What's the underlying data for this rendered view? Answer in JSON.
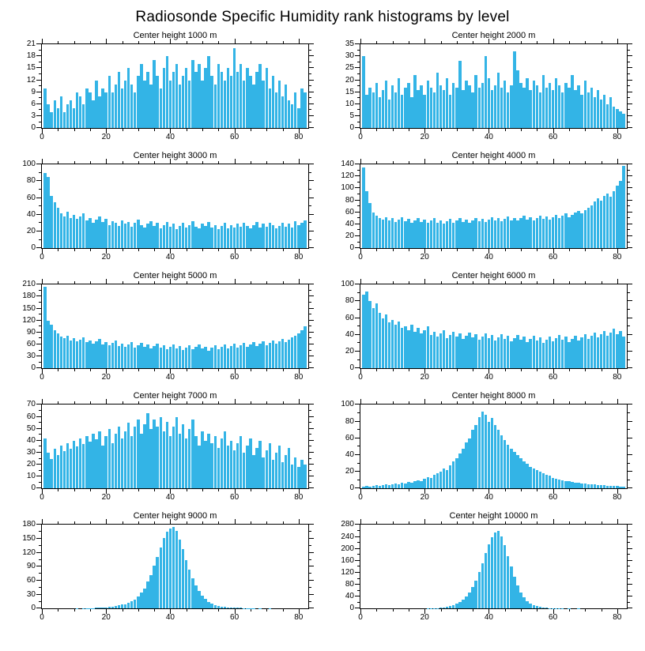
{
  "title": "Radiosonde Specific Humidity rank histograms by level",
  "colors": {
    "bar": "#33b4e6",
    "axis": "#000000",
    "background": "#ffffff"
  },
  "axes": {
    "xticks": [
      0,
      20,
      40,
      60,
      80
    ],
    "xminor_step": 5,
    "xlim": [
      0,
      83
    ]
  },
  "chart_data": [
    {
      "type": "bar",
      "title": "Center height 1000 m",
      "x_start": 1,
      "ylim": [
        0,
        21
      ],
      "yticks": [
        0,
        3,
        6,
        9,
        12,
        15,
        18,
        21
      ],
      "values": [
        10,
        6,
        4,
        7,
        5,
        8,
        4,
        6,
        7,
        5,
        9,
        8,
        6,
        10,
        9,
        7,
        12,
        8,
        10,
        9,
        13,
        9,
        11,
        14,
        10,
        12,
        15,
        11,
        9,
        13,
        16,
        12,
        14,
        11,
        17,
        13,
        10,
        15,
        18,
        12,
        14,
        16,
        11,
        13,
        15,
        12,
        17,
        14,
        16,
        12,
        15,
        18,
        13,
        11,
        16,
        14,
        12,
        15,
        13,
        20,
        14,
        16,
        12,
        15,
        13,
        11,
        14,
        16,
        12,
        15,
        10,
        13,
        9,
        12,
        8,
        11,
        7,
        6,
        9,
        5,
        10,
        9
      ]
    },
    {
      "type": "bar",
      "title": "Center height 2000 m",
      "x_start": 1,
      "ylim": [
        0,
        35
      ],
      "yticks": [
        0,
        5,
        10,
        15,
        20,
        25,
        30,
        35
      ],
      "values": [
        30,
        14,
        17,
        15,
        19,
        13,
        16,
        20,
        12,
        18,
        15,
        21,
        14,
        17,
        19,
        13,
        22,
        16,
        18,
        14,
        20,
        17,
        15,
        23,
        18,
        16,
        21,
        14,
        19,
        17,
        28,
        16,
        20,
        18,
        15,
        22,
        17,
        19,
        30,
        21,
        16,
        18,
        23,
        17,
        20,
        15,
        18,
        32,
        24,
        19,
        17,
        21,
        16,
        20,
        18,
        15,
        22,
        17,
        19,
        16,
        21,
        18,
        15,
        19,
        17,
        22,
        16,
        18,
        14,
        20,
        15,
        17,
        13,
        16,
        12,
        14,
        10,
        13,
        9,
        8,
        7,
        6
      ]
    },
    {
      "type": "bar",
      "title": "Center height 3000 m",
      "x_start": 1,
      "ylim": [
        0,
        100
      ],
      "yticks": [
        0,
        20,
        40,
        60,
        80,
        100
      ],
      "values": [
        90,
        85,
        62,
        55,
        48,
        42,
        38,
        44,
        36,
        40,
        35,
        38,
        42,
        33,
        36,
        30,
        34,
        38,
        31,
        35,
        28,
        32,
        30,
        27,
        33,
        29,
        31,
        26,
        30,
        34,
        28,
        25,
        29,
        32,
        27,
        30,
        24,
        28,
        31,
        26,
        29,
        23,
        27,
        30,
        25,
        28,
        32,
        26,
        24,
        29,
        27,
        31,
        25,
        28,
        23,
        27,
        30,
        24,
        28,
        25,
        29,
        26,
        30,
        27,
        24,
        28,
        31,
        25,
        29,
        26,
        30,
        28,
        24,
        27,
        30,
        26,
        29,
        25,
        32,
        28,
        30,
        33
      ]
    },
    {
      "type": "bar",
      "title": "Center height 4000 m",
      "x_start": 1,
      "ylim": [
        0,
        140
      ],
      "yticks": [
        0,
        20,
        40,
        60,
        80,
        100,
        120,
        140
      ],
      "values": [
        135,
        95,
        75,
        60,
        55,
        50,
        48,
        52,
        46,
        50,
        44,
        48,
        52,
        45,
        49,
        43,
        47,
        51,
        44,
        48,
        42,
        46,
        50,
        43,
        47,
        41,
        45,
        49,
        42,
        46,
        50,
        44,
        48,
        43,
        47,
        51,
        45,
        49,
        44,
        48,
        52,
        46,
        50,
        45,
        49,
        53,
        47,
        51,
        46,
        50,
        54,
        48,
        52,
        47,
        51,
        55,
        49,
        53,
        48,
        52,
        56,
        50,
        54,
        58,
        52,
        56,
        60,
        62,
        58,
        64,
        68,
        72,
        78,
        84,
        80,
        88,
        92,
        86,
        96,
        104,
        112,
        138
      ]
    },
    {
      "type": "bar",
      "title": "Center height 5000 m",
      "x_start": 1,
      "ylim": [
        0,
        210
      ],
      "yticks": [
        0,
        30,
        60,
        90,
        120,
        150,
        180,
        210
      ],
      "values": [
        205,
        120,
        110,
        95,
        88,
        80,
        75,
        82,
        70,
        76,
        68,
        72,
        78,
        65,
        70,
        62,
        68,
        74,
        60,
        66,
        58,
        64,
        70,
        56,
        62,
        54,
        60,
        66,
        52,
        58,
        64,
        55,
        60,
        50,
        56,
        62,
        53,
        58,
        48,
        54,
        60,
        50,
        56,
        46,
        52,
        58,
        49,
        54,
        60,
        50,
        55,
        45,
        52,
        58,
        48,
        54,
        60,
        50,
        56,
        62,
        52,
        58,
        64,
        54,
        60,
        66,
        56,
        62,
        68,
        58,
        64,
        70,
        62,
        68,
        74,
        66,
        72,
        78,
        82,
        88,
        95,
        105
      ]
    },
    {
      "type": "bar",
      "title": "Center height 6000 m",
      "x_start": 1,
      "ylim": [
        0,
        100
      ],
      "yticks": [
        0,
        20,
        40,
        60,
        80,
        100
      ],
      "values": [
        88,
        92,
        80,
        72,
        78,
        66,
        60,
        64,
        55,
        58,
        52,
        56,
        48,
        50,
        46,
        52,
        44,
        48,
        42,
        46,
        50,
        40,
        44,
        38,
        42,
        46,
        36,
        40,
        44,
        38,
        42,
        35,
        39,
        43,
        37,
        41,
        34,
        38,
        42,
        36,
        40,
        33,
        37,
        41,
        35,
        39,
        32,
        36,
        40,
        34,
        38,
        31,
        35,
        39,
        33,
        37,
        30,
        34,
        38,
        32,
        36,
        40,
        34,
        38,
        31,
        35,
        39,
        33,
        37,
        41,
        35,
        39,
        43,
        37,
        41,
        45,
        39,
        43,
        47,
        41,
        45,
        38
      ]
    },
    {
      "type": "bar",
      "title": "Center height 7000 m",
      "x_start": 1,
      "ylim": [
        0,
        70
      ],
      "yticks": [
        0,
        10,
        20,
        30,
        40,
        50,
        60,
        70
      ],
      "values": [
        42,
        30,
        25,
        33,
        28,
        36,
        31,
        38,
        33,
        40,
        35,
        42,
        37,
        44,
        39,
        46,
        41,
        48,
        36,
        44,
        50,
        38,
        46,
        52,
        42,
        48,
        55,
        44,
        52,
        58,
        46,
        54,
        63,
        50,
        58,
        52,
        60,
        48,
        56,
        44,
        52,
        60,
        46,
        54,
        42,
        50,
        58,
        44,
        36,
        48,
        40,
        46,
        38,
        44,
        34,
        42,
        48,
        36,
        40,
        32,
        38,
        44,
        30,
        36,
        42,
        28,
        34,
        40,
        26,
        32,
        38,
        24,
        30,
        36,
        22,
        28,
        34,
        20,
        26,
        18,
        24,
        20
      ]
    },
    {
      "type": "bar",
      "title": "Center height 8000 m",
      "x_start": 1,
      "ylim": [
        0,
        100
      ],
      "yticks": [
        0,
        20,
        40,
        60,
        80,
        100
      ],
      "values": [
        2,
        3,
        2,
        3,
        4,
        3,
        4,
        5,
        4,
        5,
        6,
        5,
        7,
        6,
        8,
        7,
        9,
        10,
        9,
        12,
        14,
        13,
        16,
        18,
        20,
        24,
        22,
        28,
        32,
        36,
        42,
        48,
        55,
        60,
        70,
        76,
        85,
        92,
        88,
        80,
        84,
        76,
        70,
        64,
        58,
        52,
        48,
        44,
        40,
        36,
        32,
        30,
        26,
        24,
        22,
        20,
        18,
        16,
        15,
        13,
        12,
        11,
        10,
        9,
        9,
        8,
        7,
        7,
        6,
        6,
        5,
        5,
        5,
        4,
        4,
        4,
        3,
        3,
        3,
        3,
        2,
        2
      ]
    },
    {
      "type": "bar",
      "title": "Center height 9000 m",
      "x_start": 1,
      "ylim": [
        0,
        180
      ],
      "yticks": [
        0,
        30,
        60,
        90,
        120,
        150,
        180
      ],
      "values": [
        0,
        0,
        0,
        0,
        0,
        0,
        0,
        0,
        0,
        0,
        1,
        0,
        1,
        1,
        1,
        1,
        2,
        2,
        3,
        3,
        4,
        5,
        6,
        8,
        10,
        9,
        13,
        16,
        20,
        26,
        34,
        44,
        58,
        72,
        92,
        112,
        132,
        152,
        166,
        173,
        175,
        168,
        148,
        128,
        104,
        84,
        66,
        50,
        38,
        28,
        21,
        15,
        11,
        8,
        6,
        5,
        4,
        3,
        3,
        2,
        2,
        2,
        1,
        1,
        1,
        1,
        0,
        1,
        0,
        0,
        1,
        0,
        0,
        0,
        0,
        0,
        0,
        0,
        0,
        0,
        0,
        0
      ]
    },
    {
      "type": "bar",
      "title": "Center height 10000 m",
      "x_start": 1,
      "ylim": [
        0,
        280
      ],
      "yticks": [
        0,
        40,
        80,
        120,
        160,
        200,
        240,
        280
      ],
      "values": [
        0,
        0,
        0,
        0,
        0,
        0,
        0,
        0,
        0,
        0,
        0,
        0,
        0,
        0,
        0,
        0,
        0,
        0,
        0,
        0,
        1,
        1,
        2,
        2,
        3,
        4,
        6,
        8,
        12,
        16,
        22,
        30,
        40,
        55,
        72,
        95,
        122,
        152,
        185,
        215,
        238,
        255,
        260,
        242,
        212,
        176,
        140,
        106,
        78,
        55,
        38,
        26,
        18,
        12,
        8,
        6,
        4,
        3,
        2,
        2,
        1,
        1,
        1,
        0,
        1,
        0,
        0,
        1,
        0,
        0,
        0,
        0,
        0,
        0,
        0,
        0,
        0,
        0,
        0,
        0,
        0,
        0
      ]
    }
  ]
}
